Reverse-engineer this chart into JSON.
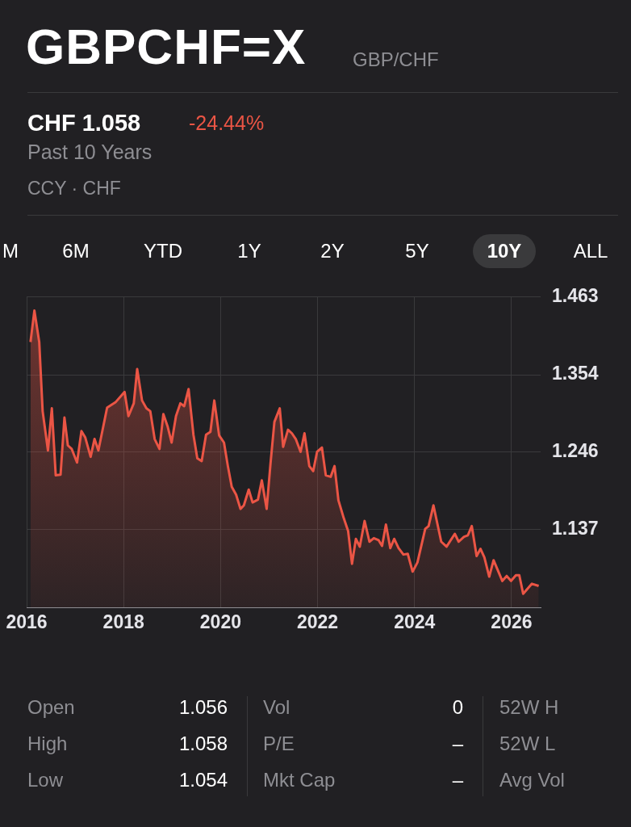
{
  "chart_data": {
    "type": "area",
    "title": "GBPCHF=X",
    "subtitle": "GBP/CHF",
    "annotations": [
      "CHF 1.058",
      "-24.44%",
      "Past 10 Years",
      "CCY · CHF",
      "M",
      "6M",
      "YTD",
      "1Y",
      "2Y",
      "5Y",
      "10Y",
      "ALL",
      "Open",
      "1.056",
      "Vol",
      "0",
      "52W H",
      "High",
      "1.058",
      "P/E",
      "–",
      "52W L",
      "Low",
      "1.054",
      "Mkt Cap",
      "–",
      "Avg Vol"
    ],
    "x": [
      2016.08,
      2016.16,
      2016.26,
      2016.33,
      2016.44,
      2016.52,
      2016.6,
      2016.7,
      2016.78,
      2016.85,
      2016.93,
      2017.04,
      2017.13,
      2017.21,
      2017.32,
      2017.4,
      2017.48,
      2017.66,
      2017.84,
      2018.02,
      2018.1,
      2018.21,
      2018.28,
      2018.38,
      2018.47,
      2018.55,
      2018.64,
      2018.74,
      2018.82,
      2018.91,
      2018.99,
      2019.08,
      2019.17,
      2019.25,
      2019.34,
      2019.44,
      2019.52,
      2019.61,
      2019.7,
      2019.79,
      2019.87,
      2019.97,
      2020.07,
      2020.15,
      2020.23,
      2020.32,
      2020.41,
      2020.48,
      2020.58,
      2020.66,
      2020.77,
      2020.85,
      2020.95,
      2021.03,
      2021.11,
      2021.22,
      2021.29,
      2021.39,
      2021.47,
      2021.55,
      2021.65,
      2021.73,
      2021.83,
      2021.91,
      2021.99,
      2022.09,
      2022.17,
      2022.27,
      2022.35,
      2022.43,
      2022.54,
      2022.63,
      2022.71,
      2022.79,
      2022.87,
      2022.97,
      2023.07,
      2023.16,
      2023.26,
      2023.33,
      2023.41,
      2023.5,
      2023.58,
      2023.67,
      2023.77,
      2023.86,
      2023.96,
      2024.06,
      2024.22,
      2024.29,
      2024.39,
      2024.55,
      2024.66,
      2024.83,
      2024.91,
      2025.02,
      2025.1,
      2025.18,
      2025.28,
      2025.36,
      2025.44,
      2025.54,
      2025.63,
      2025.81,
      2025.9,
      2025.99,
      2026.09,
      2026.16,
      2026.24,
      2026.42,
      2026.56
    ],
    "series": [
      {
        "color": "#eb5545",
        "values": [
          1.4,
          1.444,
          1.4,
          1.303,
          1.248,
          1.307,
          1.213,
          1.214,
          1.294,
          1.255,
          1.25,
          1.231,
          1.275,
          1.266,
          1.239,
          1.264,
          1.248,
          1.308,
          1.316,
          1.33,
          1.296,
          1.314,
          1.362,
          1.318,
          1.307,
          1.303,
          1.264,
          1.25,
          1.299,
          1.281,
          1.259,
          1.296,
          1.314,
          1.31,
          1.334,
          1.27,
          1.237,
          1.233,
          1.27,
          1.274,
          1.318,
          1.269,
          1.259,
          1.226,
          1.197,
          1.186,
          1.166,
          1.171,
          1.193,
          1.175,
          1.179,
          1.206,
          1.166,
          1.23,
          1.288,
          1.307,
          1.253,
          1.277,
          1.272,
          1.264,
          1.246,
          1.272,
          1.226,
          1.219,
          1.246,
          1.252,
          1.213,
          1.211,
          1.226,
          1.178,
          1.153,
          1.135,
          1.089,
          1.124,
          1.113,
          1.149,
          1.12,
          1.125,
          1.122,
          1.114,
          1.144,
          1.111,
          1.124,
          1.111,
          1.102,
          1.103,
          1.078,
          1.091,
          1.138,
          1.142,
          1.171,
          1.12,
          1.113,
          1.131,
          1.12,
          1.127,
          1.129,
          1.142,
          1.1,
          1.11,
          1.098,
          1.071,
          1.094,
          1.065,
          1.072,
          1.065,
          1.073,
          1.073,
          1.047,
          1.061,
          1.058
        ]
      }
    ],
    "xlim": [
      2016,
      2026.6
    ],
    "xticks": [
      2016,
      2018,
      2020,
      2022,
      2024,
      2026
    ],
    "ylim": [
      1.028,
      1.463
    ],
    "yticks": [
      1.137,
      1.246,
      1.354,
      1.463
    ],
    "grid": true
  }
}
